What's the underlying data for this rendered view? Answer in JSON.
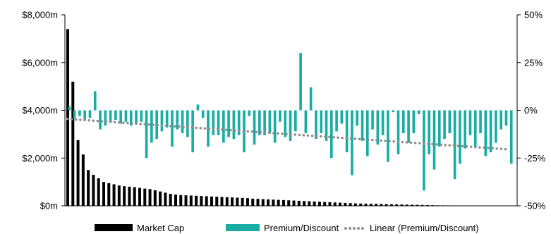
{
  "chart_data": {
    "type": "bar",
    "title": "",
    "xlabel": "",
    "y_left": {
      "ticks": [
        "$0m",
        "$2,000m",
        "$4,000m",
        "$6,000m",
        "$8,000m"
      ],
      "ylim": [
        0,
        8000
      ],
      "unit": "$m"
    },
    "y_right": {
      "ticks": [
        "-50%",
        "-25%",
        "0%",
        "25%",
        "50%"
      ],
      "ylim": [
        -50,
        50
      ],
      "unit": "%"
    },
    "grid": false,
    "legend_position": "bottom",
    "series": [
      {
        "name": "Market Cap",
        "type": "bar",
        "axis": "left",
        "color": "#000000",
        "values": [
          7400,
          5200,
          2750,
          2150,
          1500,
          1300,
          1150,
          1000,
          950,
          900,
          850,
          820,
          800,
          780,
          750,
          720,
          700,
          650,
          600,
          550,
          500,
          470,
          450,
          440,
          430,
          420,
          410,
          400,
          390,
          380,
          370,
          360,
          350,
          340,
          330,
          320,
          300,
          290,
          280,
          270,
          260,
          250,
          240,
          230,
          220,
          210,
          200,
          190,
          180,
          170,
          160,
          150,
          140,
          130,
          120,
          110,
          100,
          95,
          90,
          85,
          80,
          75,
          70,
          65,
          60,
          55,
          50,
          45,
          40,
          35,
          30,
          25,
          20,
          18,
          15,
          12,
          10,
          8,
          6,
          5,
          4,
          3,
          2,
          2,
          1,
          1,
          1,
          1
        ]
      },
      {
        "name": "Premium/Discount",
        "type": "bar",
        "axis": "right",
        "color": "#17ada3",
        "values": [
          2,
          -4,
          -3,
          -5,
          -4,
          10,
          -10,
          -8,
          -6,
          -5,
          -7,
          -6,
          -8,
          -7,
          -6,
          -25,
          -17,
          -15,
          -11,
          -9,
          -19,
          -10,
          -12,
          -14,
          -22,
          3,
          -4,
          -19,
          -13,
          -13,
          -17,
          -14,
          -15,
          -13,
          -22,
          -3,
          -18,
          -13,
          -13,
          -12,
          -17,
          -6,
          -14,
          -16,
          -11,
          30,
          -12,
          12,
          -15,
          -12,
          -16,
          -25,
          -11,
          -7,
          -22,
          -34,
          -8,
          -16,
          -24,
          -10,
          -18,
          -13,
          -27,
          -1,
          -23,
          -12,
          -17,
          -12,
          -2,
          -42,
          -23,
          -31,
          -19,
          -15,
          -12,
          -36,
          -28,
          -20,
          -13,
          -19,
          -12,
          -24,
          -22,
          -17,
          -10,
          -8,
          -28
        ]
      },
      {
        "name": "Linear (Premium/Discount)",
        "type": "line",
        "axis": "right",
        "style": "dotted",
        "color": "#8f8f8f",
        "x_range": [
          1,
          87
        ],
        "y_start": -4.5,
        "y_end": -20.5
      }
    ]
  },
  "legend": {
    "market_cap": "Market Cap",
    "premium_discount": "Premium/Discount",
    "trend": "Linear (Premium/Discount)"
  }
}
